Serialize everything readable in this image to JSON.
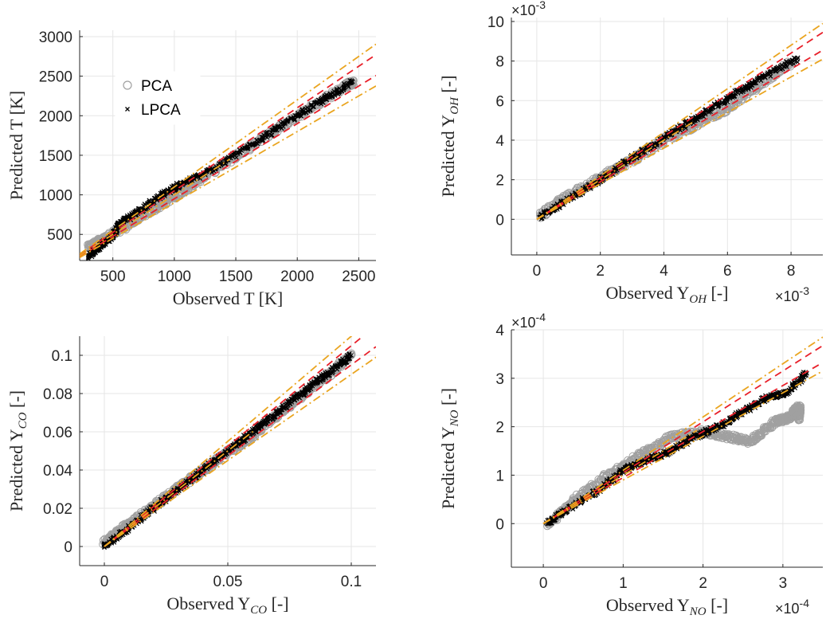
{
  "chart_data": [
    {
      "type": "scatter",
      "xlabel": "Observed T [K]",
      "ylabel": "Predicted T [K]",
      "xlim": [
        230,
        2640
      ],
      "ylim": [
        170,
        3080
      ],
      "xticks": [
        500,
        1000,
        1500,
        2000,
        2500
      ],
      "xticklabels": [
        "500",
        "1000",
        "1500",
        "2000",
        "2500"
      ],
      "yticks": [
        500,
        1000,
        1500,
        2000,
        2500,
        3000
      ],
      "yticklabels": [
        "500",
        "1000",
        "1500",
        "2000",
        "2500",
        "3000"
      ],
      "grid": true,
      "legend": {
        "placement": "upper-left",
        "entries": [
          "PCA",
          "LPCA"
        ]
      },
      "series": [
        {
          "name": "PCA",
          "marker": "circle",
          "color": "#a0a0a0",
          "x": [
            300,
            400,
            600,
            800,
            1000,
            1200,
            1500,
            1800,
            2100,
            2400,
            2450
          ],
          "y": [
            340,
            420,
            600,
            790,
            980,
            1190,
            1490,
            1800,
            2090,
            2380,
            2420
          ]
        },
        {
          "name": "LPCA",
          "marker": "x",
          "color": "#000000",
          "x": [
            300,
            400,
            500,
            550,
            700,
            900,
            1050,
            1300,
            1600,
            1900,
            2200,
            2450
          ],
          "y": [
            220,
            360,
            480,
            640,
            780,
            1000,
            1130,
            1310,
            1610,
            1900,
            2190,
            2430
          ]
        }
      ],
      "bands": [
        {
          "style": "dashed",
          "color": "#e8202a",
          "slopes": [
            1.05,
            0.95
          ]
        },
        {
          "style": "dash-dot",
          "color": "#eaa520",
          "slopes": [
            1.1,
            0.9
          ]
        }
      ]
    },
    {
      "type": "scatter",
      "xlabel": "Observed Y",
      "xlabel_sub": "OH",
      "xlabel_unit": " [-]",
      "ylabel": "Predicted Y",
      "ylabel_sub": "OH",
      "ylabel_unit": " [-]",
      "x_multiplier": "×10",
      "x_multiplier_exp": "-3",
      "y_multiplier": "×10",
      "y_multiplier_exp": "-3",
      "xlim": [
        -0.0008,
        0.009
      ],
      "ylim": [
        -0.0018,
        0.0102
      ],
      "xticks": [
        0,
        0.002,
        0.004,
        0.006,
        0.008
      ],
      "xticklabels": [
        "0",
        "2",
        "4",
        "6",
        "8"
      ],
      "yticks": [
        0,
        0.002,
        0.004,
        0.006,
        0.008,
        0.01
      ],
      "yticklabels": [
        "0",
        "2",
        "4",
        "6",
        "8",
        "10"
      ],
      "grid": true,
      "series": [
        {
          "name": "PCA",
          "marker": "circle",
          "color": "#a0a0a0",
          "x": [
            0.0001,
            0.001,
            0.002,
            0.003,
            0.004,
            0.005,
            0.006,
            0.007,
            0.008
          ],
          "y": [
            0.0002,
            0.0012,
            0.0021,
            0.003,
            0.004,
            0.0048,
            0.0056,
            0.0068,
            0.0079
          ]
        },
        {
          "name": "LPCA",
          "marker": "x",
          "color": "#000000",
          "x": [
            0.0001,
            0.001,
            0.002,
            0.003,
            0.004,
            0.005,
            0.006,
            0.007,
            0.0082
          ],
          "y": [
            0.0001,
            0.001,
            0.002,
            0.0031,
            0.0041,
            0.0051,
            0.0061,
            0.0071,
            0.0081
          ]
        }
      ],
      "bands": [
        {
          "style": "dashed",
          "color": "#e8202a",
          "slopes": [
            1.05,
            0.95
          ]
        },
        {
          "style": "dash-dot",
          "color": "#eaa520",
          "slopes": [
            1.1,
            0.9
          ]
        }
      ]
    },
    {
      "type": "scatter",
      "xlabel": "Observed Y",
      "xlabel_sub": "CO",
      "xlabel_unit": " [-]",
      "ylabel": "Predicted Y",
      "ylabel_sub": "CO",
      "ylabel_unit": " [-]",
      "xlim": [
        -0.01,
        0.11
      ],
      "ylim": [
        -0.01,
        0.11
      ],
      "xticks": [
        0,
        0.05,
        0.1
      ],
      "xticklabels": [
        "0",
        "0.05",
        "0.1"
      ],
      "yticks": [
        0,
        0.02,
        0.04,
        0.06,
        0.08,
        0.1
      ],
      "yticklabels": [
        "0",
        "0.02",
        "0.04",
        "0.06",
        "0.08",
        "0.1"
      ],
      "grid": true,
      "series": [
        {
          "name": "PCA",
          "marker": "circle",
          "color": "#a0a0a0",
          "x": [
            0,
            0.005,
            0.01,
            0.02,
            0.03,
            0.04,
            0.05,
            0.06,
            0.07,
            0.08,
            0.09,
            0.1
          ],
          "y": [
            0.002,
            0.007,
            0.012,
            0.021,
            0.031,
            0.04,
            0.049,
            0.058,
            0.069,
            0.079,
            0.089,
            0.1
          ]
        },
        {
          "name": "LPCA",
          "marker": "x",
          "color": "#000000",
          "x": [
            0,
            0.01,
            0.02,
            0.03,
            0.04,
            0.05,
            0.06,
            0.07,
            0.08,
            0.09,
            0.1
          ],
          "y": [
            0,
            0.01,
            0.02,
            0.03,
            0.04,
            0.05,
            0.06,
            0.07,
            0.08,
            0.09,
            0.1
          ]
        }
      ],
      "bands": [
        {
          "style": "dashed",
          "color": "#e8202a",
          "slopes": [
            1.05,
            0.95
          ]
        },
        {
          "style": "dash-dot",
          "color": "#eaa520",
          "slopes": [
            1.1,
            0.9
          ]
        }
      ]
    },
    {
      "type": "scatter",
      "xlabel": "Observed Y",
      "xlabel_sub": "NO",
      "xlabel_unit": " [-]",
      "ylabel": "Predicted Y",
      "ylabel_sub": "NO",
      "ylabel_unit": " [-]",
      "x_multiplier": "×10",
      "x_multiplier_exp": "-4",
      "y_multiplier": "×10",
      "y_multiplier_exp": "-4",
      "xlim": [
        -4e-05,
        0.00035
      ],
      "ylim": [
        -9e-05,
        0.0004
      ],
      "xticks": [
        0,
        0.0001,
        0.0002,
        0.0003
      ],
      "xticklabels": [
        "0",
        "1",
        "2",
        "3"
      ],
      "yticks": [
        0,
        0.0001,
        0.0002,
        0.0003,
        0.0004
      ],
      "yticklabels": [
        "0",
        "1",
        "2",
        "3",
        "4"
      ],
      "grid": true,
      "series": [
        {
          "name": "PCA",
          "marker": "circle",
          "color": "#a0a0a0",
          "x": [
            5e-06,
            4e-05,
            8e-05,
            0.00012,
            0.00016,
            0.0002,
            0.00023,
            0.00026,
            0.00029,
            0.00031,
            0.00032,
            0.00032
          ],
          "y": [
            -5e-06,
            5e-05,
            0.0001,
            0.00014,
            0.00018,
            0.00019,
            0.00018,
            0.00017,
            0.00021,
            0.00022,
            0.00024,
            0.000215
          ]
        },
        {
          "name": "LPCA",
          "marker": "x",
          "color": "#000000",
          "x": [
            5e-06,
            3e-05,
            7e-05,
            0.0001,
            0.00013,
            0.00016,
            0.00019,
            0.00022,
            0.00025,
            0.00028,
            0.000305,
            0.00033
          ],
          "y": [
            0.0,
            3e-05,
            7e-05,
            0.00011,
            0.00013,
            0.00015,
            0.00018,
            0.0002,
            0.00023,
            0.00026,
            0.00027,
            0.00031
          ]
        }
      ],
      "bands": [
        {
          "style": "dashed",
          "color": "#e8202a",
          "slopes": [
            1.05,
            0.95
          ]
        },
        {
          "style": "dash-dot",
          "color": "#eaa520",
          "slopes": [
            1.1,
            0.9
          ]
        }
      ]
    }
  ]
}
